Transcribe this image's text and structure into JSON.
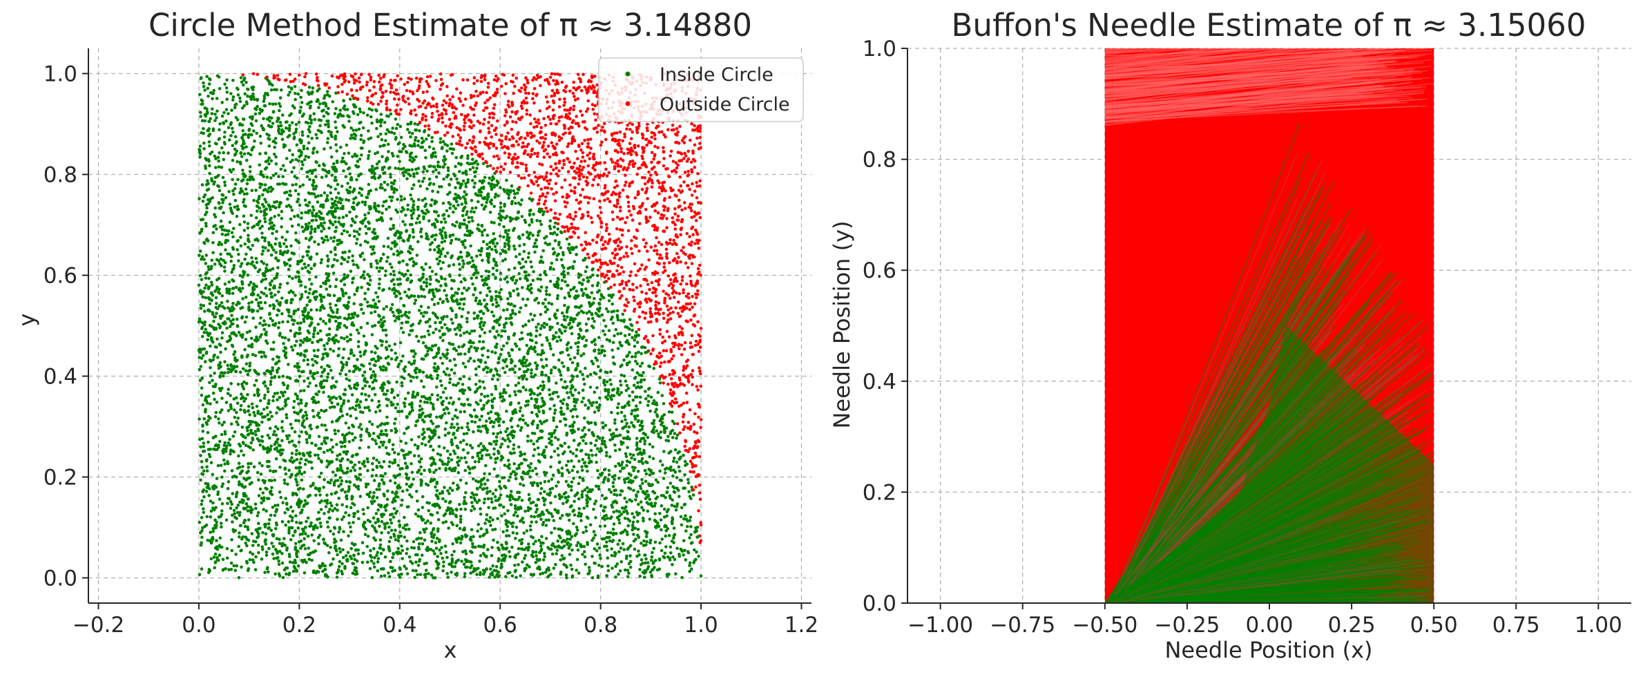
{
  "chart_data": [
    {
      "type": "scatter",
      "title": "Circle Method Estimate of π ≈ 3.14880",
      "xlabel": "x",
      "ylabel": "y",
      "xlim": [
        -0.22,
        1.22
      ],
      "ylim": [
        -0.05,
        1.05
      ],
      "xticks": [
        -0.2,
        0.0,
        0.2,
        0.4,
        0.6,
        0.8,
        1.0,
        1.2
      ],
      "xtick_labels": [
        "−0.2",
        "0.0",
        "0.2",
        "0.4",
        "0.6",
        "0.8",
        "1.0",
        "1.2"
      ],
      "yticks": [
        0.0,
        0.2,
        0.4,
        0.6,
        0.8,
        1.0
      ],
      "ytick_labels": [
        "0.0",
        "0.2",
        "0.4",
        "0.6",
        "0.8",
        "1.0"
      ],
      "grid": true,
      "legend_position": "top-right",
      "series": [
        {
          "name": "Inside Circle",
          "color": "#008000",
          "rule": "x^2 + y^2 <= 1",
          "x_range": [
            0,
            1
          ],
          "y_range": [
            0,
            1
          ],
          "approx_points": 7872
        },
        {
          "name": "Outside Circle",
          "color": "#ff0000",
          "rule": "x^2 + y^2 > 1",
          "x_range": [
            0,
            1
          ],
          "y_range": [
            0,
            1
          ],
          "approx_points": 2128
        }
      ]
    },
    {
      "type": "line",
      "title": "Buffon's Needle Estimate of π ≈ 3.15060",
      "xlabel": "Needle Position (x)",
      "ylabel": "Needle Position (y)",
      "xlim": [
        -1.1,
        1.1
      ],
      "ylim": [
        0.0,
        1.0
      ],
      "xticks": [
        -1.0,
        -0.75,
        -0.5,
        -0.25,
        0.0,
        0.25,
        0.5,
        0.75,
        1.0
      ],
      "xtick_labels": [
        "−1.00",
        "−0.75",
        "−0.50",
        "−0.25",
        "0.00",
        "0.25",
        "0.50",
        "0.75",
        "1.00"
      ],
      "yticks": [
        0.0,
        0.2,
        0.4,
        0.6,
        0.8,
        1.0
      ],
      "ytick_labels": [
        "0.0",
        "0.2",
        "0.4",
        "0.6",
        "0.8",
        "1.0"
      ],
      "grid": true,
      "series": [
        {
          "color": "#ff0000",
          "x_range": [
            -0.5,
            0.5
          ],
          "y_range": [
            0,
            1
          ]
        },
        {
          "color": "#008000",
          "x_range": [
            -0.5,
            0.5
          ],
          "y_range": [
            0,
            1
          ]
        }
      ]
    }
  ]
}
